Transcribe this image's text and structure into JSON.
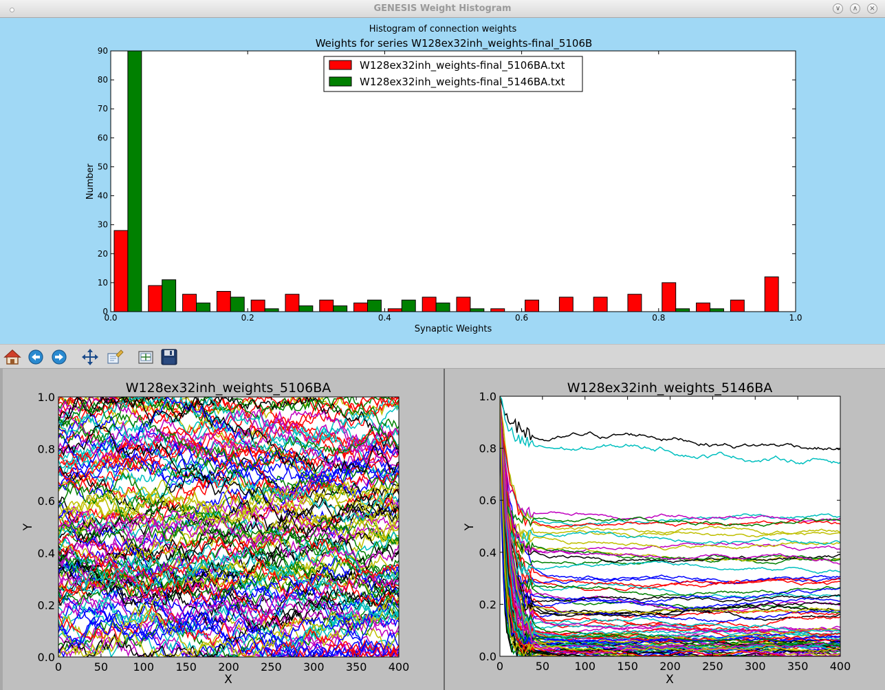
{
  "window": {
    "title": "GENESIS Weight Histogram",
    "controls": [
      "minimize-icon",
      "maximize-icon",
      "close-icon"
    ]
  },
  "toolbar": {
    "buttons": [
      "home-icon",
      "back-arrow-icon",
      "forward-arrow-icon",
      "pan-icon",
      "zoom-rect-icon",
      "configure-subplots-icon",
      "save-disk-icon"
    ]
  },
  "chart_data": [
    {
      "type": "bar",
      "suptitle": "Histogram of connection weights",
      "title": "Weights for series  W128ex32inh_weights-final_5106B",
      "xlabel": "Synaptic Weights",
      "ylabel": "Number",
      "xlim": [
        0.0,
        1.0
      ],
      "ylim": [
        0,
        90
      ],
      "xticks": [
        "0.0",
        "0.2",
        "0.4",
        "0.6",
        "0.8",
        "1.0"
      ],
      "yticks": [
        "0",
        "10",
        "20",
        "30",
        "40",
        "50",
        "60",
        "70",
        "80",
        "90"
      ],
      "legend": "top-center",
      "categories": [
        0.025,
        0.075,
        0.125,
        0.175,
        0.225,
        0.275,
        0.325,
        0.375,
        0.425,
        0.475,
        0.525,
        0.575,
        0.625,
        0.675,
        0.725,
        0.775,
        0.825,
        0.875,
        0.925,
        0.975
      ],
      "series": [
        {
          "name": "W128ex32inh_weights-final_5106BA.txt",
          "color": "#ff0000",
          "values": [
            28,
            9,
            6,
            7,
            4,
            6,
            4,
            3,
            1,
            5,
            5,
            1,
            4,
            5,
            5,
            6,
            10,
            3,
            4,
            12
          ]
        },
        {
          "name": "W128ex32inh_weights-final_5146BA.txt",
          "color": "#008000",
          "values": [
            90,
            11,
            3,
            5,
            1,
            2,
            2,
            4,
            4,
            3,
            1,
            0,
            0,
            0,
            0,
            0,
            1,
            1,
            0,
            0
          ]
        }
      ]
    },
    {
      "type": "line",
      "title": "W128ex32inh_weights_5106BA",
      "xlabel": "X",
      "ylabel": "Y",
      "xlim": [
        0,
        400
      ],
      "ylim": [
        0.0,
        1.0
      ],
      "xticks": [
        "0",
        "50",
        "100",
        "150",
        "200",
        "250",
        "300",
        "350",
        "400"
      ],
      "yticks": [
        "0.0",
        "0.2",
        "0.4",
        "0.6",
        "0.8",
        "1.0"
      ],
      "series_colors": [
        "#0000ff",
        "#008000",
        "#ff0000",
        "#00bfbf",
        "#bf00bf",
        "#bfbf00",
        "#000000"
      ]
    },
    {
      "type": "line",
      "title": "W128ex32inh_weights_5146BA",
      "xlabel": "X",
      "ylabel": "Y",
      "xlim": [
        0,
        400
      ],
      "ylim": [
        0.0,
        1.0
      ],
      "xticks": [
        "0",
        "50",
        "100",
        "150",
        "200",
        "250",
        "300",
        "350",
        "400"
      ],
      "yticks": [
        "0.0",
        "0.2",
        "0.4",
        "0.6",
        "0.8",
        "1.0"
      ],
      "series_colors": [
        "#0000ff",
        "#008000",
        "#ff0000",
        "#00bfbf",
        "#bf00bf",
        "#bfbf00",
        "#000000"
      ]
    }
  ]
}
